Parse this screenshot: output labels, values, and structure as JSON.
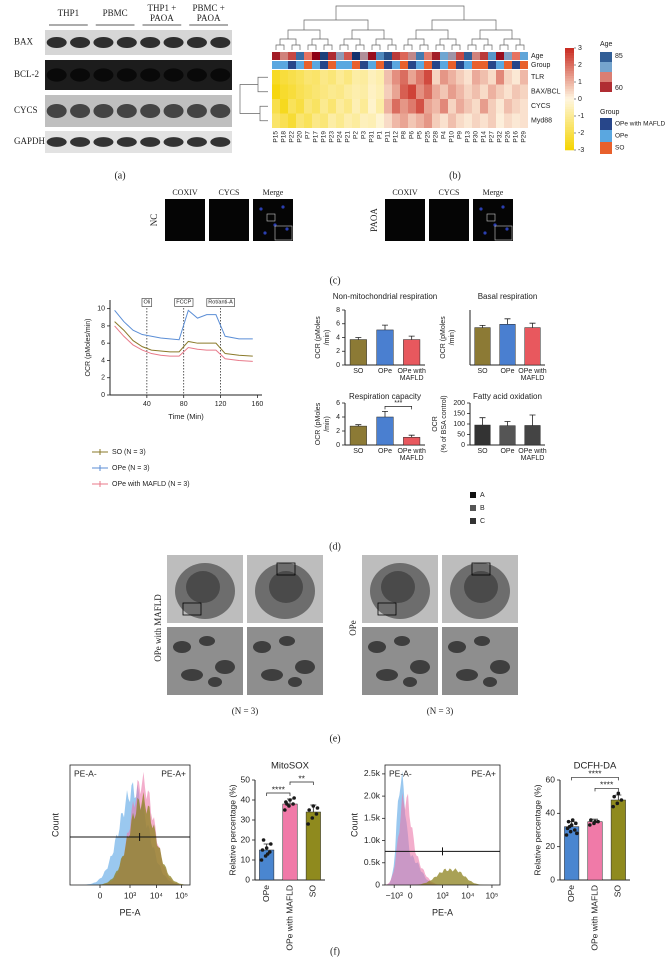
{
  "panels": {
    "a": {
      "label": "(a)",
      "columns": [
        [
          "THP1"
        ],
        [
          "PBMC"
        ],
        [
          "THP1 +",
          "PAOA"
        ],
        [
          "PBMC +",
          "PAOA"
        ]
      ],
      "rows": [
        "BAX",
        "BCL-2",
        "CYCS",
        "GAPDH"
      ]
    },
    "b": {
      "label": "(b)"
    },
    "c": {
      "label": "(c)",
      "channels": [
        "COXIV",
        "CYCS",
        "Merge"
      ],
      "conditions": [
        "NC",
        "PAOA"
      ]
    },
    "d": {
      "label": "(d)",
      "legend": [
        {
          "name": "A",
          "color": "#111111"
        },
        {
          "name": "B",
          "color": "#555555"
        },
        {
          "name": "C",
          "color": "#333333"
        }
      ]
    },
    "e": {
      "label": "(e)",
      "groups": [
        {
          "name": "OPe with MAFLD",
          "n": "(N = 3)"
        },
        {
          "name": "OPe",
          "n": "(N = 3)"
        }
      ]
    },
    "f": {
      "label": "(f)"
    }
  },
  "chart_data": [
    {
      "type": "heatmap",
      "categories": [
        "P15",
        "P18",
        "P22",
        "P20",
        "P7",
        "P17",
        "P19",
        "P23",
        "P24",
        "P21",
        "P2",
        "P3",
        "P31",
        "P1",
        "P11",
        "P12",
        "P8",
        "P6",
        "P5",
        "P25",
        "P28",
        "P4",
        "P10",
        "P9",
        "P13",
        "P30",
        "P14",
        "P27",
        "P32",
        "P26",
        "P16",
        "P29"
      ],
      "rows": [
        "TLR",
        "BAX/BCL",
        "CYCS",
        "Myd88"
      ],
      "values": [
        [
          -2.5,
          -2.2,
          -2.0,
          -1.8,
          -1.5,
          -1.6,
          -1.2,
          -1.4,
          -1.0,
          -1.3,
          -0.8,
          -0.9,
          -0.5,
          -0.7,
          0.8,
          1.5,
          2.0,
          1.2,
          1.8,
          2.5,
          0.5,
          1.4,
          1.0,
          0.6,
          0.3,
          1.1,
          0.8,
          0.4,
          1.6,
          0.5,
          0.2,
          0.9
        ],
        [
          -2.8,
          -2.4,
          -2.2,
          -1.9,
          -1.7,
          -1.5,
          -1.3,
          -1.1,
          -1.2,
          -0.9,
          -0.7,
          -0.8,
          -0.4,
          -0.6,
          0.6,
          1.2,
          2.2,
          2.6,
          1.5,
          2.0,
          1.1,
          0.7,
          1.3,
          0.9,
          0.5,
          0.8,
          0.4,
          1.0,
          0.6,
          0.3,
          0.7,
          0.5
        ],
        [
          -2.0,
          -2.6,
          -1.8,
          -2.1,
          -1.4,
          -1.7,
          -1.1,
          -1.5,
          -0.9,
          -1.2,
          -0.6,
          -1.0,
          -0.3,
          -0.8,
          1.0,
          2.0,
          1.4,
          1.8,
          2.4,
          1.2,
          0.9,
          1.6,
          0.5,
          1.1,
          0.7,
          0.4,
          1.3,
          0.6,
          0.2,
          0.8,
          0.5,
          0.3
        ],
        [
          -1.6,
          -1.9,
          -2.3,
          -1.5,
          -1.8,
          -1.2,
          -1.4,
          -0.8,
          -1.1,
          -0.7,
          -0.9,
          -0.5,
          -0.6,
          -0.2,
          0.4,
          0.9,
          1.2,
          0.7,
          1.0,
          1.4,
          0.6,
          0.3,
          0.8,
          0.4,
          0.2,
          0.5,
          0.3,
          0.6,
          0.1,
          0.4,
          0.2,
          0.3
        ]
      ],
      "annotation_rows": [
        "Age",
        "Group"
      ],
      "age": [
        62,
        70,
        65,
        81,
        68,
        60,
        84,
        63,
        74,
        66,
        85,
        72,
        61,
        79,
        83,
        64,
        67,
        71,
        80,
        69,
        62,
        76,
        73,
        65,
        82,
        70,
        64,
        78,
        61,
        75,
        68,
        77
      ],
      "groups": [
        "OPe",
        "OPe",
        "OPe with MAFLD",
        "OPe",
        "SO",
        "OPe",
        "OPe with MAFLD",
        "SO",
        "OPe",
        "OPe",
        "SO",
        "OPe with MAFLD",
        "OPe",
        "SO",
        "OPe with MAFLD",
        "OPe",
        "SO",
        "OPe with MAFLD",
        "OPe",
        "SO",
        "OPe with MAFLD",
        "OPe",
        "SO",
        "OPe with MAFLD",
        "OPe",
        "SO",
        "SO",
        "OPe with MAFLD",
        "OPe",
        "SO",
        "OPe with MAFLD",
        "SO"
      ],
      "clim": [
        -3,
        3
      ],
      "cticks": [
        3,
        2,
        1,
        0,
        -1,
        -2,
        -3
      ],
      "age_legend_title": "Age",
      "age_lim": [
        60,
        85
      ],
      "age_ticks": [
        85,
        60
      ],
      "group_legend_title": "Group",
      "group_legend": [
        {
          "name": "OPe with MAFLD",
          "color": "#27468a"
        },
        {
          "name": "OPe",
          "color": "#5aa7e0"
        },
        {
          "name": "SO",
          "color": "#e8602c"
        }
      ]
    },
    {
      "type": "line",
      "ylabel": "OCR (pMoles/min)",
      "xlabel": "Time (Min)",
      "x": [
        5,
        15,
        25,
        35,
        45,
        55,
        65,
        75,
        85,
        95,
        105,
        115,
        125,
        140,
        155
      ],
      "xlim": [
        0,
        165
      ],
      "xticks": [
        40,
        80,
        120,
        160
      ],
      "ylim": [
        0,
        11
      ],
      "yticks": [
        0,
        2,
        4,
        6,
        8,
        10
      ],
      "annotations": [
        {
          "x": 40,
          "text": "Oli"
        },
        {
          "x": 80,
          "text": "FCCP"
        },
        {
          "x": 120,
          "text": "Rot/anti-A"
        }
      ],
      "series": [
        {
          "name": "SO (N = 3)",
          "color": "#8a7a2a",
          "values": [
            8.5,
            7.5,
            6.3,
            5.6,
            5.2,
            5.1,
            5.0,
            5.0,
            6.2,
            6.0,
            6.0,
            6.0,
            4.8,
            4.6,
            4.5
          ]
        },
        {
          "name": "OPe (N = 3)",
          "color": "#5b8ed6",
          "values": [
            9.8,
            8.5,
            7.5,
            7.0,
            6.8,
            6.6,
            6.5,
            6.4,
            9.8,
            8.9,
            9.3,
            9.3,
            6.8,
            6.5,
            6.5
          ]
        },
        {
          "name": "OPe with MAFLD (N = 3)",
          "color": "#e87a8a",
          "values": [
            8.0,
            6.8,
            5.8,
            5.2,
            4.8,
            4.6,
            4.5,
            4.5,
            5.5,
            5.3,
            5.2,
            5.2,
            4.2,
            4.0,
            3.9
          ]
        }
      ]
    },
    {
      "type": "bar",
      "title": "Non-mitochondrial respiration",
      "ylabel": [
        "OCR (pMoles",
        "/min)"
      ],
      "categories": [
        "SO",
        "OPe",
        "OPe with MAFLD"
      ],
      "colors": [
        "#8c7a35",
        "#4a7fd0",
        "#e8585e"
      ],
      "values": [
        3.7,
        5.1,
        3.7
      ],
      "errors": [
        0.3,
        0.7,
        0.5
      ],
      "ylim": [
        0,
        8
      ],
      "yticks": [
        0,
        2,
        4,
        6,
        8
      ]
    },
    {
      "type": "bar",
      "title": "Basal respiration",
      "ylabel": [
        "OCR (pMoles",
        "/min)"
      ],
      "categories": [
        "SO",
        "OPe",
        "OPe with MAFLD"
      ],
      "colors": [
        "#8c7a35",
        "#4a7fd0",
        "#e8585e"
      ],
      "values": [
        3.4,
        3.7,
        3.4
      ],
      "errors": [
        0.2,
        0.5,
        0.4
      ],
      "ylim": [
        0,
        5
      ]
    },
    {
      "type": "bar",
      "title": "Respiration capacity",
      "ylabel": [
        "OCR (pMoles",
        "/min)"
      ],
      "categories": [
        "SO",
        "OPe",
        "OPe with MAFLD"
      ],
      "colors": [
        "#8c7a35",
        "#4a7fd0",
        "#e8585e"
      ],
      "values": [
        2.7,
        4.0,
        1.1
      ],
      "errors": [
        0.2,
        0.8,
        0.3
      ],
      "ylim": [
        0,
        6
      ],
      "yticks": [
        0,
        2,
        4,
        6
      ],
      "significance": [
        {
          "text": "***",
          "between": [
            "OPe",
            "OPe with MAFLD"
          ]
        }
      ]
    },
    {
      "type": "bar",
      "title": "Fatty acid oxidation",
      "ylabel": [
        "OCR",
        "(% of BSA control)"
      ],
      "categories": [
        "SO",
        "OPe",
        "OPe with MAFLD"
      ],
      "colors": [
        "#333333",
        "#555555",
        "#444444"
      ],
      "values": [
        95,
        92,
        93
      ],
      "errors": [
        35,
        20,
        50
      ],
      "ylim": [
        0,
        200
      ],
      "yticks": [
        0,
        50,
        100,
        150,
        200
      ]
    },
    {
      "type": "flow",
      "gates": [
        "PE-A-",
        "PE-A+"
      ],
      "ylabel": "Count",
      "xlabel": "PE-A",
      "xtick_labels": [
        "0",
        "10³",
        "10⁴",
        "10⁵"
      ]
    },
    {
      "type": "bar",
      "title": "MitoSOX",
      "ylabel": [
        "Relative percentage (%)"
      ],
      "categories": [
        "OPe",
        "OPe with MAFLD",
        "SO"
      ],
      "colors": [
        "#4a86d0",
        "#f07aa8",
        "#8f8a1e"
      ],
      "values": [
        15,
        38,
        34
      ],
      "errors": [
        3,
        2.5,
        3.5
      ],
      "ylim": [
        0,
        50
      ],
      "yticks": [
        0,
        10,
        20,
        30,
        40,
        50
      ],
      "points": [
        [
          10,
          12,
          14,
          15,
          16,
          18,
          20,
          13
        ],
        [
          35,
          37,
          38,
          39,
          40,
          41,
          38
        ],
        [
          28,
          31,
          33,
          35,
          37,
          36
        ]
      ],
      "significance": [
        {
          "text": "****",
          "between": [
            "OPe",
            "OPe with MAFLD"
          ]
        },
        {
          "text": "**",
          "between": [
            "OPe with MAFLD",
            "SO"
          ]
        }
      ]
    },
    {
      "type": "flow",
      "gates": [
        "PE-A-",
        "PE-A+"
      ],
      "ylabel": "Count",
      "xlabel": "PE-A",
      "xtick_labels": [
        "−10³",
        "0",
        "10³",
        "10⁴",
        "10⁵"
      ],
      "ylim": [
        0,
        2700
      ],
      "yticks": [
        0,
        {
          "value": 500,
          "label": "0.5k"
        },
        {
          "value": 1000,
          "label": "1.0k"
        },
        {
          "value": 1500,
          "label": "1.5k"
        },
        {
          "value": 2000,
          "label": "2.0k"
        },
        {
          "value": 2500,
          "label": "2.5k"
        }
      ]
    },
    {
      "type": "bar",
      "title": "DCFH-DA",
      "ylabel": [
        "Relative percentage (%)"
      ],
      "categories": [
        "OPe",
        "OPe with MAFLD",
        "SO"
      ],
      "colors": [
        "#4a86d0",
        "#f07aa8",
        "#8f8a1e"
      ],
      "values": [
        32,
        35,
        48
      ],
      "errors": [
        3,
        1.5,
        3
      ],
      "ylim": [
        0,
        60
      ],
      "yticks": [
        0,
        20,
        40,
        60
      ],
      "points": [
        [
          27,
          29,
          30,
          31,
          33,
          34,
          35,
          36,
          28,
          32
        ],
        [
          33,
          34,
          35,
          36,
          35
        ],
        [
          44,
          46,
          48,
          50,
          52
        ]
      ],
      "significance": [
        {
          "text": "****",
          "between": [
            "OPe with MAFLD",
            "SO"
          ]
        },
        {
          "text": "****",
          "between": [
            "OPe",
            "SO"
          ]
        }
      ]
    }
  ]
}
